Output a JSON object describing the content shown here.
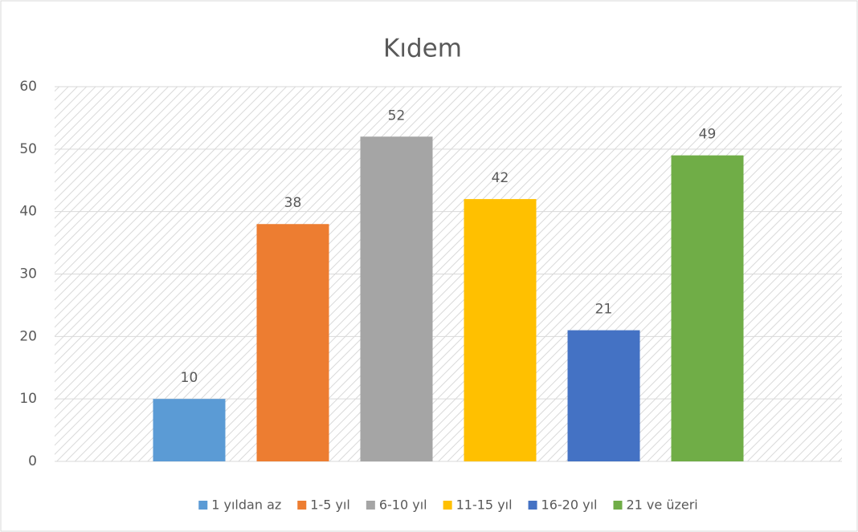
{
  "chart_data": {
    "type": "bar",
    "title": "Kıdem",
    "series": [
      {
        "name": "1 yıldan az",
        "color": "#5b9bd5",
        "values": [
          10
        ]
      },
      {
        "name": "1-5 yıl",
        "color": "#ed7d31",
        "values": [
          38
        ]
      },
      {
        "name": "6-10 yıl",
        "color": "#a5a5a5",
        "values": [
          52
        ]
      },
      {
        "name": "11-15 yıl",
        "color": "#ffc000",
        "values": [
          42
        ]
      },
      {
        "name": "16-20 yıl",
        "color": "#4472c4",
        "values": [
          21
        ]
      },
      {
        "name": "21 ve üzeri",
        "color": "#70ad47",
        "values": [
          49
        ]
      }
    ],
    "ylim": [
      0,
      60
    ],
    "yticks": [
      0,
      10,
      20,
      30,
      40,
      50,
      60
    ],
    "grid": true,
    "legend": "bottom"
  }
}
